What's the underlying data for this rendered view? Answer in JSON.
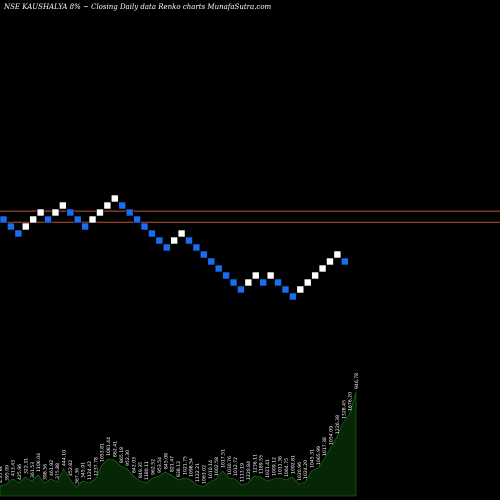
{
  "header": {
    "text": "NSE KAUSHALYA 8% ~  Closing Daily data  Renko  charts MunafaSutra.com"
  },
  "colors": {
    "background": "#000000",
    "up_brick": "#ffffff",
    "down_brick": "#1a6df0",
    "level_line": "#c0582a",
    "volume_fill": "#062606",
    "volume_line": "#1f7a1f"
  },
  "chart_data": [
    {
      "type": "renko",
      "brick_size_percent": 8,
      "bricks": [
        {
          "dir": "down",
          "level": 0
        },
        {
          "dir": "down",
          "level": -1
        },
        {
          "dir": "down",
          "level": -2
        },
        {
          "dir": "up",
          "level": -1
        },
        {
          "dir": "up",
          "level": 0
        },
        {
          "dir": "up",
          "level": 1
        },
        {
          "dir": "down",
          "level": 0
        },
        {
          "dir": "up",
          "level": 1
        },
        {
          "dir": "up",
          "level": 2
        },
        {
          "dir": "down",
          "level": 1
        },
        {
          "dir": "down",
          "level": 0
        },
        {
          "dir": "down",
          "level": -1
        },
        {
          "dir": "up",
          "level": 0
        },
        {
          "dir": "up",
          "level": 1
        },
        {
          "dir": "up",
          "level": 2
        },
        {
          "dir": "up",
          "level": 3
        },
        {
          "dir": "down",
          "level": 2
        },
        {
          "dir": "down",
          "level": 1
        },
        {
          "dir": "down",
          "level": 0
        },
        {
          "dir": "down",
          "level": -1
        },
        {
          "dir": "down",
          "level": -2
        },
        {
          "dir": "down",
          "level": -3
        },
        {
          "dir": "down",
          "level": -4
        },
        {
          "dir": "up",
          "level": -3
        },
        {
          "dir": "up",
          "level": -2
        },
        {
          "dir": "down",
          "level": -3
        },
        {
          "dir": "down",
          "level": -4
        },
        {
          "dir": "down",
          "level": -5
        },
        {
          "dir": "down",
          "level": -6
        },
        {
          "dir": "down",
          "level": -7
        },
        {
          "dir": "down",
          "level": -8
        },
        {
          "dir": "down",
          "level": -9
        },
        {
          "dir": "down",
          "level": -10
        },
        {
          "dir": "up",
          "level": -9
        },
        {
          "dir": "up",
          "level": -8
        },
        {
          "dir": "down",
          "level": -9
        },
        {
          "dir": "up",
          "level": -8
        },
        {
          "dir": "down",
          "level": -9
        },
        {
          "dir": "down",
          "level": -10
        },
        {
          "dir": "down",
          "level": -11
        },
        {
          "dir": "up",
          "level": -10
        },
        {
          "dir": "up",
          "level": -9
        },
        {
          "dir": "up",
          "level": -8
        },
        {
          "dir": "up",
          "level": -7
        },
        {
          "dir": "up",
          "level": -6
        },
        {
          "dir": "up",
          "level": -5
        },
        {
          "dir": "down",
          "level": -6
        }
      ],
      "reference_levels": [
        1.2,
        -0.4
      ]
    },
    {
      "type": "area",
      "name": "volume",
      "values": [
        10,
        12,
        17,
        13,
        19,
        15,
        21,
        13,
        17,
        14,
        27,
        17,
        9,
        15,
        13,
        17,
        31,
        37,
        36,
        30,
        27,
        20,
        15,
        13,
        18,
        20,
        24,
        21,
        16,
        18,
        16,
        11,
        9,
        14,
        17,
        25,
        18,
        17,
        11,
        13,
        20,
        19,
        15,
        17,
        18,
        16,
        19,
        12,
        14,
        25,
        28,
        37,
        48,
        59,
        74,
        82,
        104
      ],
      "labels": [
        "4.35 kk",
        "395.09",
        "413.43",
        "425.96",
        "322.31",
        "361.53",
        "1106.04",
        "398.56",
        "461.92",
        "375.88",
        "444.10",
        "452.82",
        "367.36",
        "345.91",
        "1124.42",
        "1237.78",
        "1053.81",
        "1081.44",
        "862.41",
        "865.18",
        "952.30",
        "842.03",
        "849.35",
        "1180.11",
        "962.52",
        "953.54",
        "845.08",
        "821.47",
        "838.12",
        "1021.75",
        "1098.54",
        "1122.21",
        "1063.02",
        "1010.14",
        "1002.58",
        "1017.51",
        "1030.76",
        "1012.72",
        "1113.19",
        "1220.84",
        "1236.11",
        "1189.55",
        "1021.41",
        "1009.12",
        "1011.36",
        "1064.75",
        "1092.81",
        "1020.96",
        "1024.20",
        "1045.31",
        "1065.99",
        "1017.38",
        "1054.09",
        "1226.38",
        "1328.45",
        "1676.20",
        "946.78"
      ]
    }
  ]
}
